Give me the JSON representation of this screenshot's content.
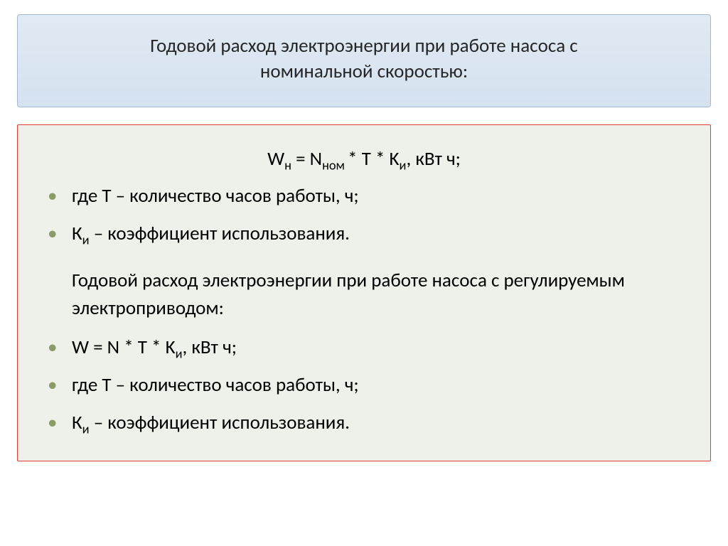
{
  "colors": {
    "slide_bg": "#ffffff",
    "title_box_bg_top": "#e0eaf4",
    "title_box_bg_bottom": "#d5e2ef",
    "title_box_border": "#9fb9d2",
    "title_text_color": "#262626",
    "content_box_bg": "#eef1e9",
    "content_box_border": "#e63b2e",
    "bullet_color": "#8a9b63",
    "body_text_color": "#000000"
  },
  "typography": {
    "title_fontsize_pt": 20,
    "body_fontsize_pt": 20,
    "font_family": "Calibri"
  },
  "title": {
    "line1": "Годовой расход электроэнергии при работе насоса с",
    "line2": "номинальной скоростью:"
  },
  "content": {
    "formula1": {
      "pre": "W",
      "sub1": "н",
      "mid1": " = N",
      "sub2": "ном ",
      "mid2": "* T * K",
      "sub3": "и",
      "tail": ", кВт ч;"
    },
    "line2": "где Т – количество часов работы, ч;",
    "line3": {
      "pre": "К",
      "sub": "и",
      "tail": " – коэффициент использования."
    },
    "paragraph": " Годовой расход электроэнергии при работе насоса с регулируемым электроприводом:",
    "line5": {
      "pre": "W = N * T * K",
      "sub": "и",
      "tail": ", кВт ч;"
    },
    "line6": "где Т – количество часов работы, ч;",
    "line7": {
      "pre": "К",
      "sub": "и",
      "tail": " – коэффициент использования."
    }
  }
}
